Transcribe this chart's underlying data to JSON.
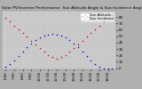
{
  "title": "Solar PV/Inverter Performance  Sun Altitude Angle & Sun Incidence Angle on PV Panels",
  "legend_labels": [
    "Sun Altitude",
    "Sun Incidence"
  ],
  "legend_colors": [
    "#0000cc",
    "#cc0000"
  ],
  "blue_x": [
    6.0,
    6.5,
    7.0,
    7.5,
    8.0,
    8.5,
    9.0,
    9.5,
    10.0,
    10.5,
    11.0,
    11.5,
    12.0,
    12.5,
    13.0,
    13.5,
    14.0,
    14.5,
    15.0,
    15.5,
    16.0,
    16.5,
    17.0,
    17.5,
    18.0,
    18.5
  ],
  "blue_y": [
    2,
    6,
    12,
    19,
    26,
    33,
    39,
    44,
    48,
    51,
    53,
    54,
    53,
    51,
    48,
    44,
    39,
    33,
    26,
    19,
    12,
    6,
    2,
    0,
    0,
    0
  ],
  "red_x": [
    6.0,
    6.5,
    7.0,
    7.5,
    8.0,
    8.5,
    9.0,
    9.5,
    10.0,
    10.5,
    11.0,
    11.5,
    12.0,
    12.5,
    13.0,
    13.5,
    14.0,
    14.5,
    15.0,
    15.5,
    16.0,
    16.5,
    17.0,
    17.5,
    18.0,
    18.5
  ],
  "red_y": [
    79,
    73,
    67,
    61,
    55,
    49,
    43,
    37,
    31,
    26,
    21,
    17,
    15,
    17,
    21,
    26,
    31,
    37,
    43,
    49,
    55,
    61,
    67,
    73,
    79,
    83
  ],
  "xlim": [
    5.5,
    19.0
  ],
  "ylim": [
    -2,
    90
  ],
  "yticks": [
    0,
    10,
    20,
    30,
    40,
    50,
    60,
    70,
    80
  ],
  "xtick_labels": [
    "6:00",
    "7:00",
    "8:00",
    "9:00",
    "10:00",
    "11:00",
    "12:00",
    "13:00",
    "14:00",
    "15:00",
    "16:00",
    "17:00",
    "18:00"
  ],
  "xtick_positions": [
    6,
    7,
    8,
    9,
    10,
    11,
    12,
    13,
    14,
    15,
    16,
    17,
    18
  ],
  "background_color": "#b0b0b0",
  "plot_bg_color": "#c8c8c8",
  "grid_color": "#e8e8e8",
  "title_fontsize": 3.2,
  "tick_fontsize": 2.8,
  "legend_fontsize": 2.8,
  "dot_size": 1.2
}
